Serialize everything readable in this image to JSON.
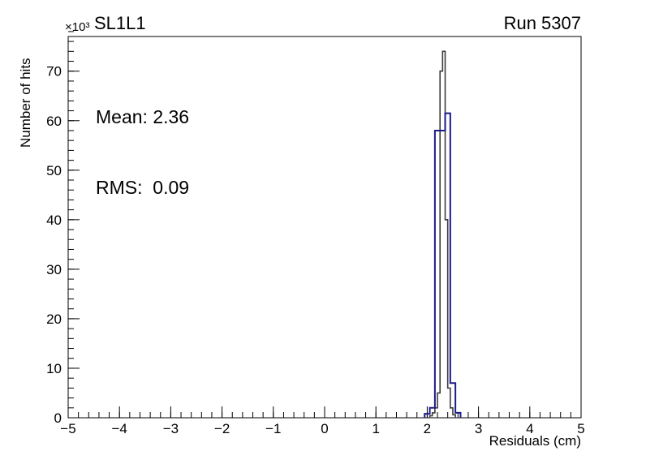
{
  "page": {
    "background": "#ffffff",
    "axis_color": "#000000",
    "text_color": "#000000"
  },
  "chart_data": {
    "type": "histogram",
    "title": "SL1L1",
    "top_right_label": "Run 5307",
    "xlabel": "Residuals (cm)",
    "ylabel": "Number of hits",
    "y_axis_multiplier": "×10³",
    "xlim": [
      -5,
      5
    ],
    "ylim": [
      0,
      77
    ],
    "x_ticks": [
      -5,
      -4,
      -3,
      -2,
      -1,
      0,
      1,
      2,
      3,
      4,
      5
    ],
    "x_tick_labels": [
      "−5",
      "−4",
      "−3",
      "−2",
      "−1",
      "0",
      "1",
      "2",
      "3",
      "4",
      "5"
    ],
    "y_ticks": [
      0,
      10,
      20,
      30,
      40,
      50,
      60,
      70
    ],
    "y_tick_labels": [
      "0",
      "10",
      "20",
      "30",
      "40",
      "50",
      "60",
      "70"
    ],
    "x_minor_step": 0.2,
    "y_minor_step": 2,
    "grid": false,
    "legend": "none",
    "y_units_scale": "values are in thousands of hits (×10³)",
    "stats": {
      "mean": 2.36,
      "rms": 0.09
    },
    "annotations": {
      "mean_line": "Mean: 2.36",
      "rms_line": "RMS:  0.09"
    },
    "series": [
      {
        "name": "all-hits-step",
        "style": "step-outline",
        "color": "#3c3c3c",
        "line_width": 1.6,
        "bin_width": 0.05,
        "x_start": 2.05,
        "heights": [
          0.4,
          1,
          2,
          5,
          70,
          74,
          40,
          6,
          2,
          0.6
        ]
      },
      {
        "name": "selected-hits-step",
        "style": "step-outline",
        "color": "#1b1b8a",
        "line_width": 2,
        "bin_width": 0.1,
        "x_start": 1.95,
        "heights": [
          0.8,
          2,
          58,
          58,
          61.5,
          7,
          1
        ]
      }
    ]
  }
}
